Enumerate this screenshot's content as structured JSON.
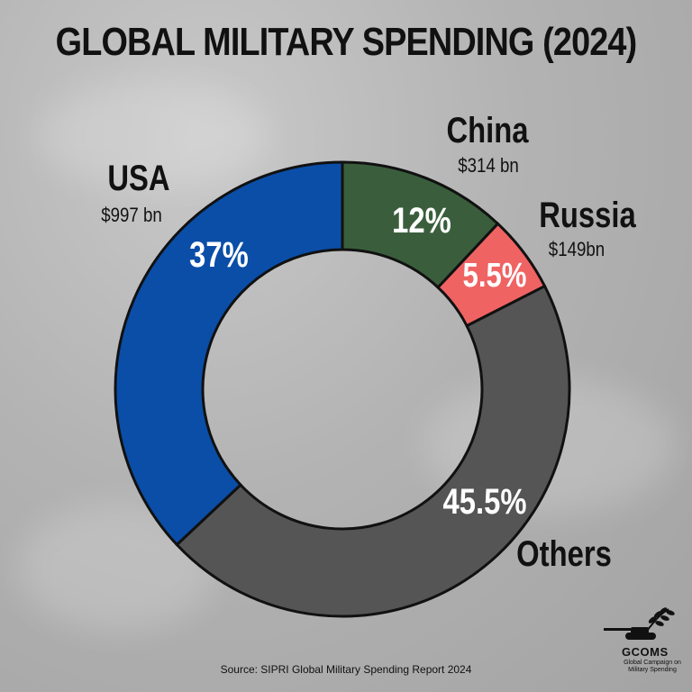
{
  "title": "GLOBAL MILITARY SPENDING (2024)",
  "source": "Source: SIPRI Global Military Spending Report 2024",
  "logo": {
    "name": "GCOMS",
    "subtitle": "Global Campaign on Military Spending"
  },
  "colors": {
    "usa": "#0a4ea8",
    "china": "#3a5e3c",
    "russia": "#f06363",
    "others": "#555555",
    "outline": "#111111"
  },
  "chart_data": {
    "type": "pie",
    "variant": "donut",
    "title": "GLOBAL MILITARY SPENDING (2024)",
    "slices": [
      {
        "name": "China",
        "amount": "$314 bn",
        "label": "12%",
        "value": 12.0
      },
      {
        "name": "Russia",
        "amount": "$149bn",
        "label": "5.5%",
        "value": 5.5
      },
      {
        "name": "Others",
        "amount": "",
        "label": "45.5%",
        "value": 45.5
      },
      {
        "name": "USA",
        "amount": "$997 bn",
        "label": "37%",
        "value": 37.0
      }
    ],
    "start": "12 o'clock, clockwise",
    "legend": "none"
  }
}
